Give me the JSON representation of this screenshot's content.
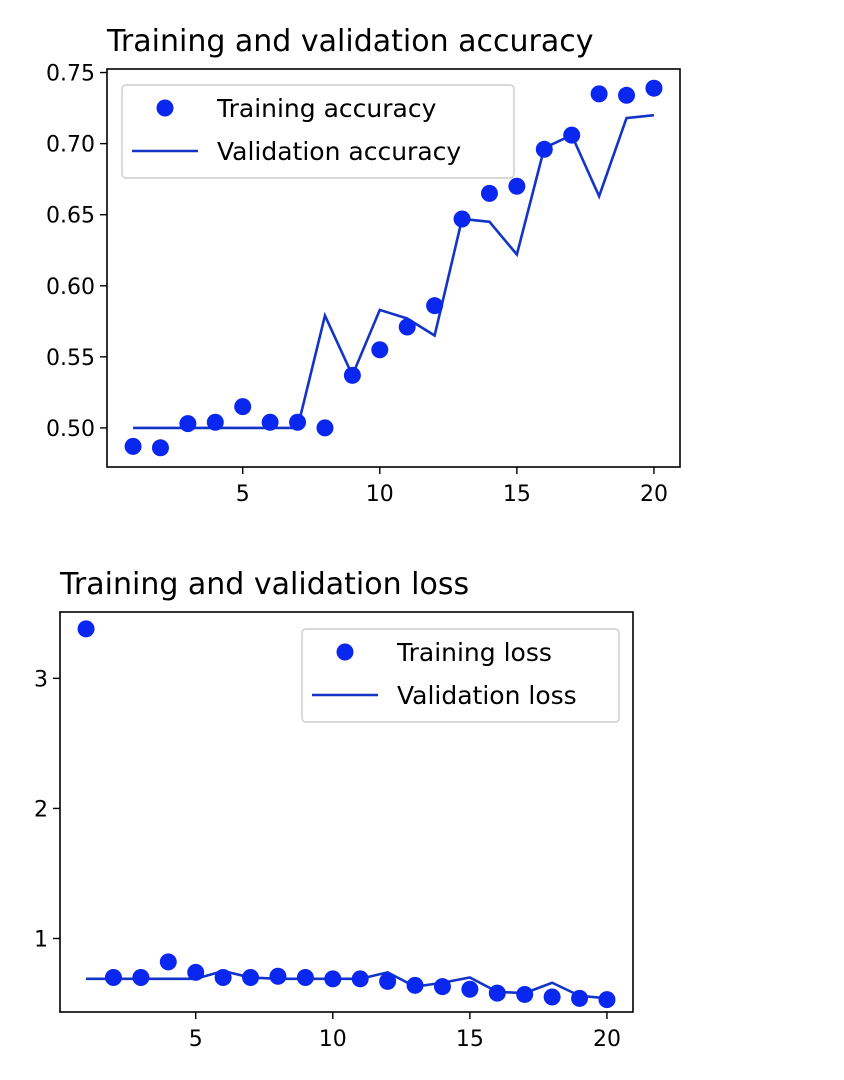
{
  "colors": {
    "training": "#0a27f0",
    "validation": "#1434c8",
    "axis": "#000000",
    "legend_border": "#cccccc"
  },
  "chart_data": [
    {
      "type": "line",
      "title": "Training and validation accuracy",
      "xlabel": "",
      "ylabel": "",
      "xlim": [
        0.05,
        20.95
      ],
      "ylim": [
        0.4725,
        0.7525
      ],
      "xticks": [
        5,
        10,
        15,
        20
      ],
      "yticks": [
        0.5,
        0.55,
        0.6,
        0.65,
        0.7,
        0.75
      ],
      "ytick_labels": [
        "0.50",
        "0.55",
        "0.60",
        "0.65",
        "0.70",
        "0.75"
      ],
      "legend_position": "upper left",
      "grid": false,
      "series": [
        {
          "name": "Training accuracy",
          "style": "points",
          "x": [
            1,
            2,
            3,
            4,
            5,
            6,
            7,
            8,
            9,
            10,
            11,
            12,
            13,
            14,
            15,
            16,
            17,
            18,
            19,
            20
          ],
          "values": [
            0.487,
            0.486,
            0.503,
            0.504,
            0.515,
            0.504,
            0.504,
            0.5,
            0.537,
            0.555,
            0.571,
            0.586,
            0.647,
            0.665,
            0.67,
            0.696,
            0.706,
            0.735,
            0.734,
            0.739
          ]
        },
        {
          "name": "Validation accuracy",
          "style": "line",
          "x": [
            1,
            2,
            3,
            4,
            5,
            6,
            7,
            8,
            9,
            10,
            11,
            12,
            13,
            14,
            15,
            16,
            17,
            18,
            19,
            20
          ],
          "values": [
            0.5,
            0.5,
            0.5,
            0.5,
            0.5,
            0.5,
            0.5,
            0.579,
            0.537,
            0.583,
            0.577,
            0.565,
            0.647,
            0.645,
            0.622,
            0.697,
            0.706,
            0.663,
            0.718,
            0.72
          ]
        }
      ]
    },
    {
      "type": "line",
      "title": "Training and validation loss",
      "xlabel": "",
      "ylabel": "",
      "xlim": [
        0.05,
        20.95
      ],
      "ylim": [
        0.435,
        3.51
      ],
      "xticks": [
        5,
        10,
        15,
        20
      ],
      "yticks": [
        1,
        2,
        3
      ],
      "ytick_labels": [
        "1",
        "2",
        "3"
      ],
      "legend_position": "upper right",
      "grid": false,
      "series": [
        {
          "name": "Training loss",
          "style": "points",
          "x": [
            1,
            2,
            3,
            4,
            5,
            6,
            7,
            8,
            9,
            10,
            11,
            12,
            13,
            14,
            15,
            16,
            17,
            18,
            19,
            20
          ],
          "values": [
            3.38,
            0.7,
            0.7,
            0.82,
            0.74,
            0.7,
            0.7,
            0.71,
            0.7,
            0.69,
            0.69,
            0.67,
            0.64,
            0.63,
            0.61,
            0.58,
            0.57,
            0.55,
            0.54,
            0.53
          ]
        },
        {
          "name": "Validation loss",
          "style": "line",
          "x": [
            1,
            2,
            3,
            4,
            5,
            6,
            7,
            8,
            9,
            10,
            11,
            12,
            13,
            14,
            15,
            16,
            17,
            18,
            19,
            20
          ],
          "values": [
            0.69,
            0.69,
            0.69,
            0.69,
            0.69,
            0.75,
            0.7,
            0.69,
            0.69,
            0.69,
            0.69,
            0.74,
            0.63,
            0.66,
            0.7,
            0.59,
            0.58,
            0.66,
            0.56,
            0.54
          ]
        }
      ]
    }
  ]
}
